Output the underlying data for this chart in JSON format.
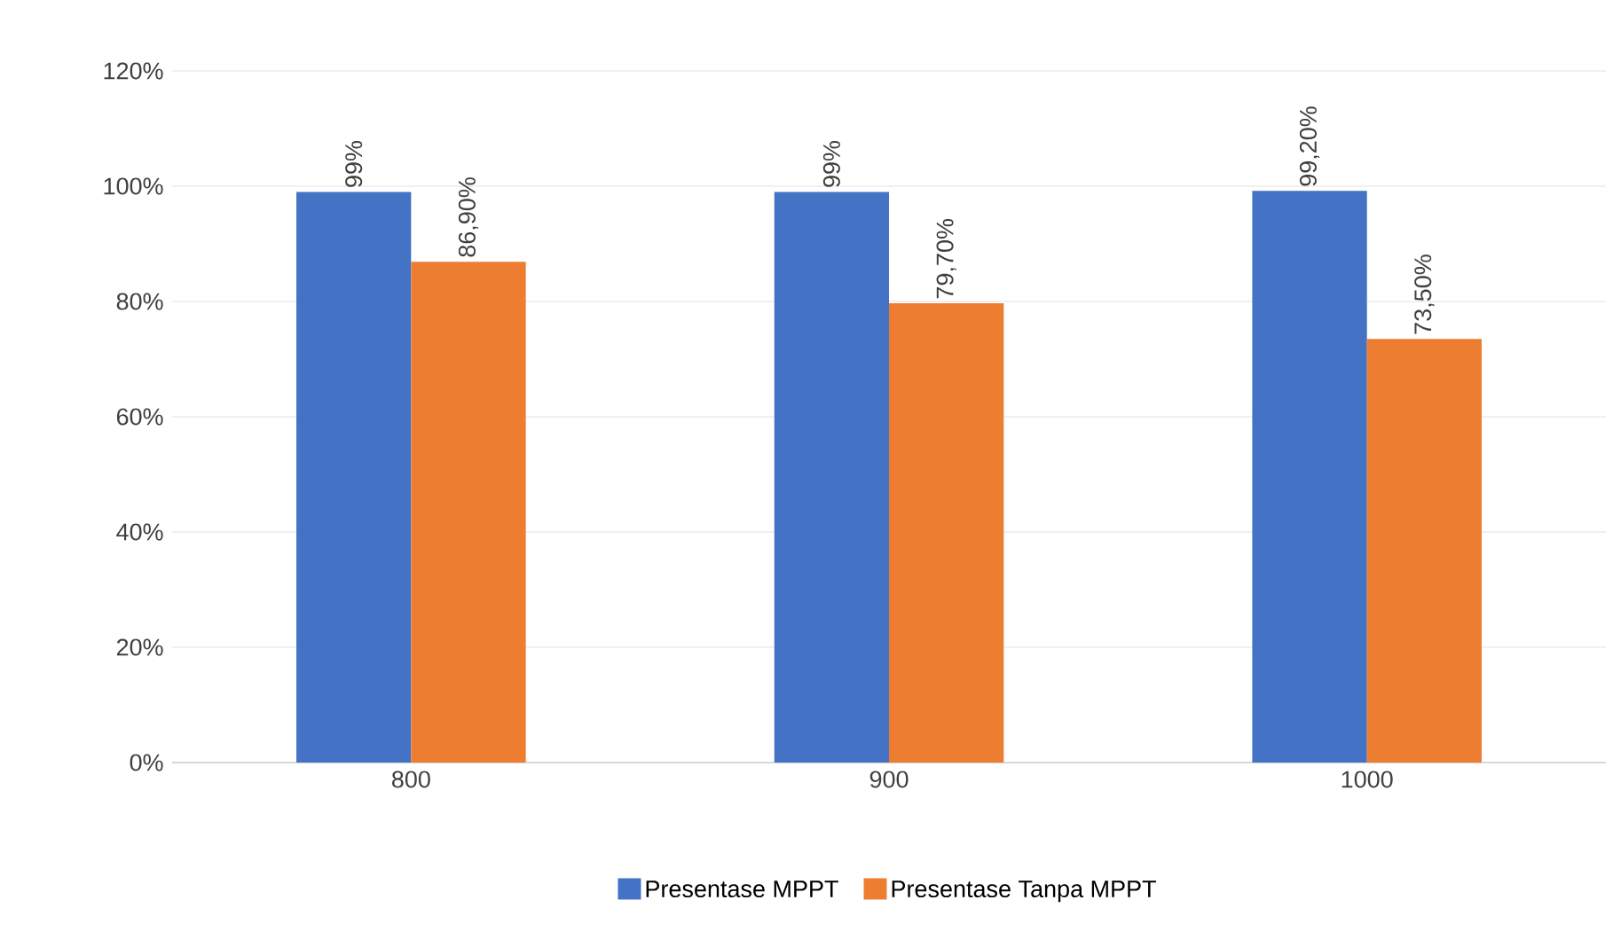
{
  "chart_data": {
    "type": "bar",
    "categories": [
      "800",
      "900",
      "1000"
    ],
    "series": [
      {
        "name": "Presentase MPPT",
        "color": "#4472c4",
        "values": [
          99,
          99,
          99.2
        ],
        "value_labels": [
          "99%",
          "99%",
          "99,20%"
        ]
      },
      {
        "name": "Presentase Tanpa MPPT",
        "color": "#ed7d31",
        "values": [
          86.9,
          79.7,
          73.5
        ],
        "value_labels": [
          "86,90%",
          "79,70%",
          "73,50%"
        ]
      }
    ],
    "ylim": [
      0,
      120
    ],
    "yticks": [
      {
        "value": 0,
        "label": "0%"
      },
      {
        "value": 20,
        "label": "20%"
      },
      {
        "value": 40,
        "label": "40%"
      },
      {
        "value": 60,
        "label": "60%"
      },
      {
        "value": 80,
        "label": "80%"
      },
      {
        "value": 100,
        "label": "100%"
      },
      {
        "value": 120,
        "label": "120%"
      }
    ],
    "grid": "y",
    "legend": "bottom"
  }
}
